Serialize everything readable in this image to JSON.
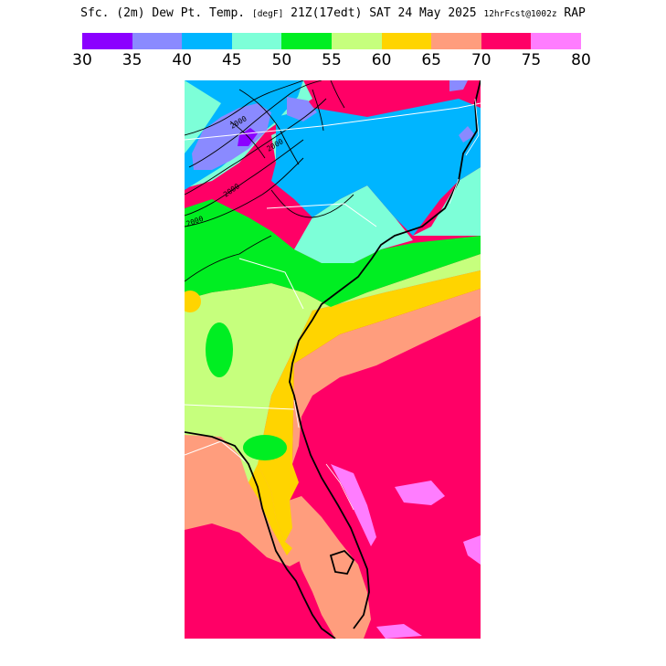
{
  "title": {
    "field": "Sfc. (2m) Dew Pt. Temp.",
    "units": "[degF]",
    "valid": "21Z(17edt)",
    "date": "SAT 24 May 2025",
    "forecast": "12hrFcst@1002z",
    "model": "RAP"
  },
  "legend": {
    "colors": [
      "#8b00ff",
      "#8a8aff",
      "#00b5ff",
      "#7dffd8",
      "#00ee22",
      "#c6ff7d",
      "#ffd400",
      "#ff9d7d",
      "#ff0066",
      "#ff7dff"
    ],
    "ticks": [
      "30",
      "35",
      "40",
      "45",
      "50",
      "55",
      "60",
      "65",
      "70",
      "75",
      "80"
    ]
  },
  "map": {
    "contour_labels": [
      "2000",
      "2000",
      "2000",
      "2000"
    ]
  }
}
